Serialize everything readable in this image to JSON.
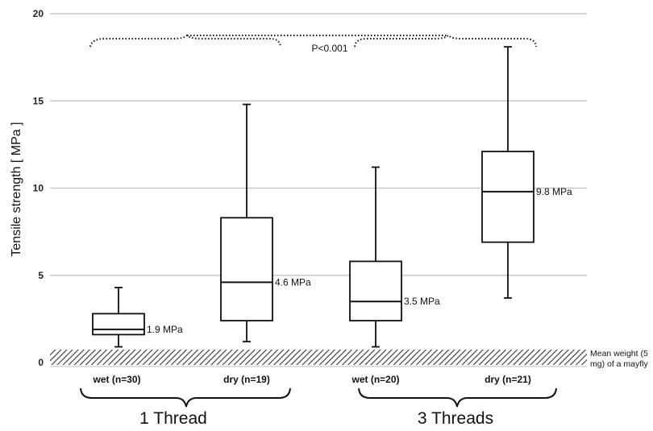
{
  "chart_data": {
    "type": "box",
    "ylabel": "Tensile strength [ MPa ]",
    "ylim": [
      0,
      20
    ],
    "yticks": [
      "0",
      "5",
      "10",
      "15",
      "20"
    ],
    "grid": true,
    "categories": [
      "wet (n=30)",
      "dry (n=19)",
      "wet (n=20)",
      "dry (n=21)"
    ],
    "groups": [
      "1 Thread",
      "3 Threads"
    ],
    "boxes": [
      {
        "min": 0.9,
        "q1": 1.6,
        "median": 1.9,
        "q3": 2.8,
        "max": 4.3,
        "median_label": "1.9 MPa"
      },
      {
        "min": 1.2,
        "q1": 2.4,
        "median": 4.6,
        "q3": 8.3,
        "max": 14.8,
        "median_label": "4.6 MPa"
      },
      {
        "min": 0.9,
        "q1": 2.4,
        "median": 3.5,
        "q3": 5.8,
        "max": 11.2,
        "median_label": "3.5 MPa"
      },
      {
        "min": 3.7,
        "q1": 6.9,
        "median": 9.8,
        "q3": 12.1,
        "max": 18.1,
        "median_label": "9.8 MPa"
      }
    ],
    "reference_band": {
      "from": 0.0,
      "to": 0.7,
      "label_line1": "Mean weight (5",
      "label_line2": "mg) of a mayfly"
    },
    "annotation": "P<0.001"
  }
}
